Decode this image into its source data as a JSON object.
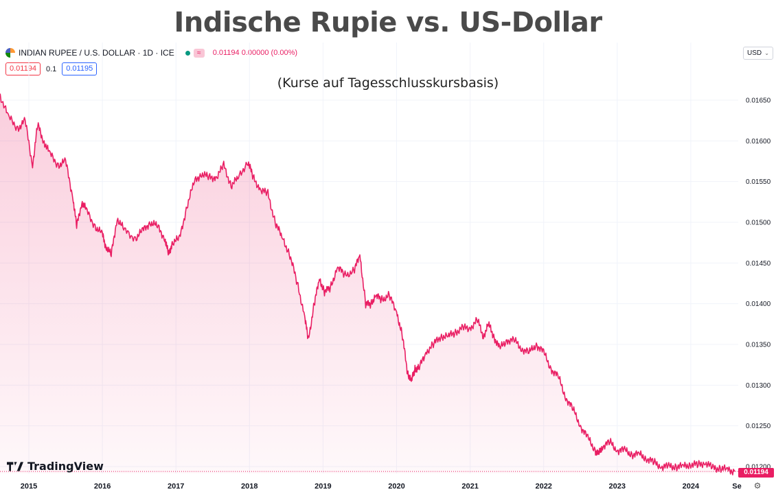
{
  "title": "Indische Rupie vs. US-Dollar",
  "subtitle": "(Kurse auf Tagesschlusskursbasis)",
  "symbol": {
    "name": "INDIAN RUPEE / U.S. DOLLAR · 1D · ICE",
    "approx_badge": "≈",
    "quote": "0.01194  0.00000 (0.00%)"
  },
  "prices": {
    "sell": "0.01194",
    "spread": "0.1",
    "buy": "0.01195"
  },
  "currency": "USD",
  "brand": "TradingView",
  "last_price_label": "0.01194",
  "colors": {
    "line": "#e91e63",
    "sell": "#f23645",
    "buy": "#2962ff",
    "title": "#4a4a4a"
  },
  "chart_data": {
    "type": "area",
    "x_ticks": [
      "2015",
      "2016",
      "2017",
      "2018",
      "2019",
      "2020",
      "2021",
      "2022",
      "2023",
      "2024",
      "Se"
    ],
    "y_ticks": [
      "0.01650",
      "0.01600",
      "0.01550",
      "0.01500",
      "0.01450",
      "0.01400",
      "0.01350",
      "0.01300",
      "0.01250",
      "0.01200"
    ],
    "ylim": [
      0.0119,
      0.0166
    ],
    "grid": true,
    "series": [
      {
        "x": [
          2014.6,
          2014.72,
          2014.85,
          2014.95,
          2015.05,
          2015.12,
          2015.2,
          2015.28,
          2015.4,
          2015.5,
          2015.6,
          2015.65,
          2015.72,
          2015.78,
          2015.9,
          2016.0,
          2016.05,
          2016.12,
          2016.2,
          2016.3,
          2016.45,
          2016.55,
          2016.65,
          2016.75,
          2016.85,
          2016.9,
          2016.95,
          2017.05,
          2017.15,
          2017.25,
          2017.35,
          2017.45,
          2017.55,
          2017.65,
          2017.75,
          2017.85,
          2017.98,
          2018.05,
          2018.15,
          2018.25,
          2018.35,
          2018.45,
          2018.55,
          2018.65,
          2018.75,
          2018.8,
          2018.88,
          2018.95,
          2019.02,
          2019.1,
          2019.2,
          2019.3,
          2019.42,
          2019.5,
          2019.58,
          2019.65,
          2019.72,
          2019.8,
          2019.9,
          2020.0,
          2020.08,
          2020.15,
          2020.2,
          2020.25,
          2020.3,
          2020.4,
          2020.5,
          2020.6,
          2020.7,
          2020.8,
          2020.9,
          2021.0,
          2021.1,
          2021.18,
          2021.25,
          2021.32,
          2021.4,
          2021.5,
          2021.6,
          2021.7,
          2021.8,
          2021.9,
          2022.0,
          2022.1,
          2022.2,
          2022.3,
          2022.4,
          2022.5,
          2022.6,
          2022.7,
          2022.75,
          2022.8,
          2022.9,
          2023.0,
          2023.1,
          2023.2,
          2023.3,
          2023.4,
          2023.5,
          2023.6,
          2023.7,
          2023.8,
          2023.9,
          2024.0,
          2024.1,
          2024.2,
          2024.3,
          2024.4,
          2024.5,
          2024.6
        ],
        "y": [
          0.01658,
          0.0163,
          0.01615,
          0.01625,
          0.0157,
          0.0162,
          0.016,
          0.01585,
          0.0157,
          0.01575,
          0.0153,
          0.01495,
          0.01525,
          0.01515,
          0.01495,
          0.01485,
          0.0147,
          0.0146,
          0.01505,
          0.0149,
          0.0148,
          0.0149,
          0.015,
          0.01495,
          0.0148,
          0.0146,
          0.01475,
          0.0148,
          0.0152,
          0.0155,
          0.0156,
          0.01555,
          0.01555,
          0.0157,
          0.01545,
          0.01555,
          0.01575,
          0.01555,
          0.0154,
          0.01535,
          0.015,
          0.0148,
          0.0146,
          0.01425,
          0.01385,
          0.01355,
          0.014,
          0.0143,
          0.01415,
          0.0142,
          0.01445,
          0.01435,
          0.0144,
          0.0146,
          0.014,
          0.014,
          0.0141,
          0.01405,
          0.0141,
          0.0139,
          0.0136,
          0.01315,
          0.01305,
          0.0132,
          0.0132,
          0.0134,
          0.0135,
          0.0136,
          0.0136,
          0.01365,
          0.0137,
          0.0137,
          0.0138,
          0.0136,
          0.01375,
          0.0136,
          0.01345,
          0.01355,
          0.01355,
          0.01345,
          0.0134,
          0.0135,
          0.0134,
          0.0132,
          0.0131,
          0.01285,
          0.0127,
          0.0125,
          0.01235,
          0.0122,
          0.01215,
          0.01225,
          0.0123,
          0.0122,
          0.0122,
          0.01215,
          0.01215,
          0.0121,
          0.01205,
          0.012,
          0.012,
          0.012,
          0.012,
          0.01203,
          0.01202,
          0.01205,
          0.01198,
          0.01198,
          0.01196,
          0.01194
        ]
      }
    ]
  }
}
